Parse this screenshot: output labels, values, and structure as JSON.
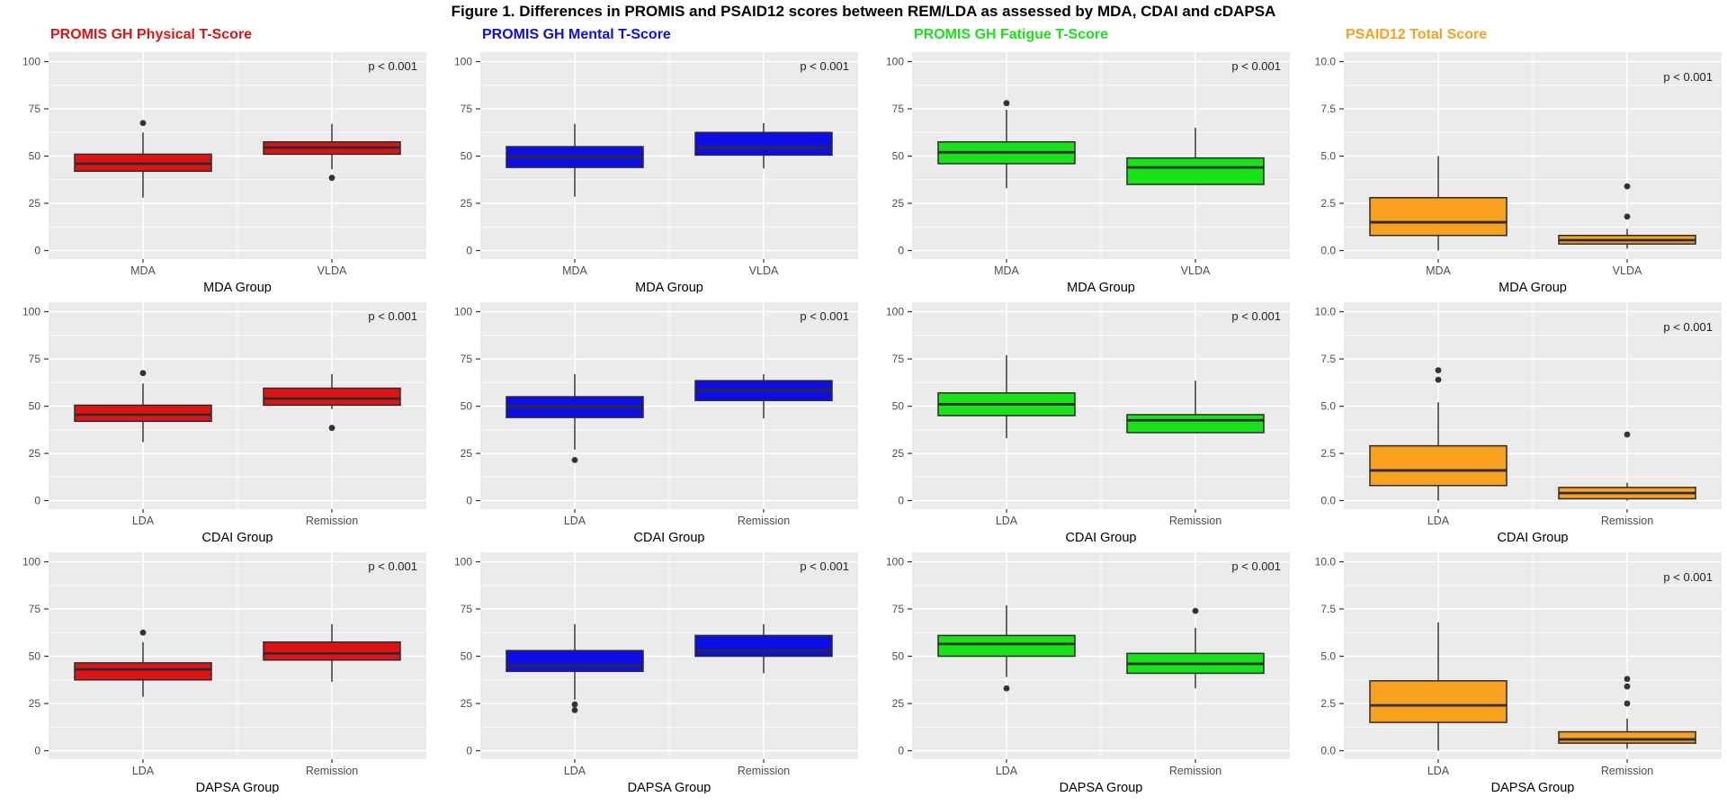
{
  "figure_title": "Figure 1. Differences in PROMIS and PSAID12 scores between REM/LDA as assessed by MDA, CDAI and cDAPSA",
  "annotation_label": "p < 0.001",
  "columns": [
    {
      "title": "PROMIS GH Physical T-Score",
      "color": "#DE1414",
      "tick_labels": [
        "100",
        "75",
        "50",
        "25",
        "0"
      ],
      "tick_values": [
        100,
        75,
        50,
        25,
        0
      ],
      "ylim": [
        -4.5,
        105
      ],
      "annotation_dy": 20
    },
    {
      "title": "PROMIS GH Mental T-Score",
      "color": "#0D0DE8",
      "tick_labels": [
        "100",
        "75",
        "50",
        "25",
        "0"
      ],
      "tick_values": [
        100,
        75,
        50,
        25,
        0
      ],
      "ylim": [
        -4.5,
        105
      ],
      "annotation_dy": 20
    },
    {
      "title": "PROMIS GH Fatigue T-Score",
      "color": "#17E317",
      "tick_labels": [
        "100",
        "75",
        "50",
        "25",
        "0"
      ],
      "tick_values": [
        100,
        75,
        50,
        25,
        0
      ],
      "ylim": [
        -4.5,
        105
      ],
      "annotation_dy": 20
    },
    {
      "title": "PSAID12 Total Score",
      "color": "#F7A11E",
      "tick_labels": [
        "10.0",
        "7.5",
        "5.0",
        "2.5",
        "0.0"
      ],
      "tick_values": [
        10,
        7.5,
        5,
        2.5,
        0
      ],
      "ylim": [
        -0.45,
        10.5
      ],
      "annotation_dy": 32
    }
  ],
  "rows": [
    {
      "group_label": "MDA Group",
      "categories": [
        "MDA",
        "VLDA"
      ]
    },
    {
      "group_label": "CDAI Group",
      "categories": [
        "LDA",
        "Remission"
      ]
    },
    {
      "group_label": "DAPSA Group",
      "categories": [
        "LDA",
        "Remission"
      ]
    }
  ],
  "style": {
    "panel_bg": "#EBEBEB",
    "grid_color": "#FFFFFF",
    "box_border": "#2B2B2B",
    "tick_text": "#4D4D4D",
    "axis_title_color": "#000000",
    "annotation_color": "#1F1F1F"
  },
  "chart_data": [
    {
      "type": "boxplot",
      "column": "PROMIS GH Physical T-Score",
      "xlabel": "MDA Group",
      "categories": [
        "MDA",
        "VLDA"
      ],
      "yticks": [
        0,
        25,
        50,
        75,
        100
      ],
      "ylim": [
        0,
        100
      ],
      "annotation": "p < 0.001",
      "series": [
        {
          "name": "MDA",
          "min": 28,
          "q1": 42,
          "median": 46,
          "q3": 51,
          "max": 62.5,
          "outliers": [
            67.5
          ]
        },
        {
          "name": "VLDA",
          "min": 43,
          "q1": 51,
          "median": 54.5,
          "q3": 57.5,
          "max": 67,
          "outliers": [
            38.5
          ]
        }
      ]
    },
    {
      "type": "boxplot",
      "column": "PROMIS GH Mental T-Score",
      "xlabel": "MDA Group",
      "categories": [
        "MDA",
        "VLDA"
      ],
      "yticks": [
        0,
        25,
        50,
        75,
        100
      ],
      "ylim": [
        0,
        100
      ],
      "annotation": "p < 0.001",
      "series": [
        {
          "name": "MDA",
          "min": 28.5,
          "q1": 44,
          "median": 49.5,
          "q3": 55,
          "max": 67,
          "outliers": []
        },
        {
          "name": "VLDA",
          "min": 43.5,
          "q1": 50.5,
          "median": 54.5,
          "q3": 62.5,
          "max": 67.5,
          "outliers": []
        }
      ]
    },
    {
      "type": "boxplot",
      "column": "PROMIS GH Fatigue T-Score",
      "xlabel": "MDA Group",
      "categories": [
        "MDA",
        "VLDA"
      ],
      "yticks": [
        0,
        25,
        50,
        75,
        100
      ],
      "ylim": [
        0,
        100
      ],
      "annotation": "p < 0.001",
      "series": [
        {
          "name": "MDA",
          "min": 33,
          "q1": 46,
          "median": 52,
          "q3": 57.5,
          "max": 74.5,
          "outliers": [
            78
          ]
        },
        {
          "name": "VLDA",
          "min": 35,
          "q1": 35,
          "median": 44,
          "q3": 49,
          "max": 65,
          "outliers": []
        }
      ]
    },
    {
      "type": "boxplot",
      "column": "PSAID12 Total Score",
      "xlabel": "MDA Group",
      "categories": [
        "MDA",
        "VLDA"
      ],
      "yticks": [
        0,
        2.5,
        5,
        7.5,
        10
      ],
      "ylim": [
        0,
        10
      ],
      "annotation": "p < 0.001",
      "series": [
        {
          "name": "MDA",
          "min": 0,
          "q1": 0.8,
          "median": 1.5,
          "q3": 2.8,
          "max": 5,
          "outliers": []
        },
        {
          "name": "VLDA",
          "min": 0.1,
          "q1": 0.35,
          "median": 0.55,
          "q3": 0.8,
          "max": 1.15,
          "outliers": [
            1.8,
            3.4
          ]
        }
      ]
    },
    {
      "type": "boxplot",
      "column": "PROMIS GH Physical T-Score",
      "xlabel": "CDAI Group",
      "categories": [
        "LDA",
        "Remission"
      ],
      "yticks": [
        0,
        25,
        50,
        75,
        100
      ],
      "ylim": [
        0,
        100
      ],
      "annotation": "p < 0.001",
      "series": [
        {
          "name": "LDA",
          "min": 31,
          "q1": 42,
          "median": 45.5,
          "q3": 50.5,
          "max": 62,
          "outliers": [
            67.5
          ]
        },
        {
          "name": "Remission",
          "min": 48.5,
          "q1": 50.5,
          "median": 54,
          "q3": 59.5,
          "max": 67,
          "outliers": [
            38.5
          ]
        }
      ]
    },
    {
      "type": "boxplot",
      "column": "PROMIS GH Mental T-Score",
      "xlabel": "CDAI Group",
      "categories": [
        "LDA",
        "Remission"
      ],
      "yticks": [
        0,
        25,
        50,
        75,
        100
      ],
      "ylim": [
        0,
        100
      ],
      "annotation": "p < 0.001",
      "series": [
        {
          "name": "LDA",
          "min": 27,
          "q1": 44,
          "median": 49.5,
          "q3": 55,
          "max": 67,
          "outliers": [
            21.5
          ]
        },
        {
          "name": "Remission",
          "min": 43.5,
          "q1": 53,
          "median": 58.5,
          "q3": 63.5,
          "max": 67,
          "outliers": []
        }
      ]
    },
    {
      "type": "boxplot",
      "column": "PROMIS GH Fatigue T-Score",
      "xlabel": "CDAI Group",
      "categories": [
        "LDA",
        "Remission"
      ],
      "yticks": [
        0,
        25,
        50,
        75,
        100
      ],
      "ylim": [
        0,
        100
      ],
      "annotation": "p < 0.001",
      "series": [
        {
          "name": "LDA",
          "min": 33,
          "q1": 45,
          "median": 51,
          "q3": 57,
          "max": 77,
          "outliers": []
        },
        {
          "name": "Remission",
          "min": 36,
          "q1": 36,
          "median": 42.5,
          "q3": 45.5,
          "max": 63.5,
          "outliers": []
        }
      ]
    },
    {
      "type": "boxplot",
      "column": "PSAID12 Total Score",
      "xlabel": "CDAI Group",
      "categories": [
        "LDA",
        "Remission"
      ],
      "yticks": [
        0,
        2.5,
        5,
        7.5,
        10
      ],
      "ylim": [
        0,
        10
      ],
      "annotation": "p < 0.001",
      "series": [
        {
          "name": "LDA",
          "min": 0,
          "q1": 0.8,
          "median": 1.6,
          "q3": 2.9,
          "max": 5.2,
          "outliers": [
            6.4,
            6.9
          ]
        },
        {
          "name": "Remission",
          "min": 0,
          "q1": 0.1,
          "median": 0.4,
          "q3": 0.7,
          "max": 0.95,
          "outliers": [
            3.5
          ]
        }
      ]
    },
    {
      "type": "boxplot",
      "column": "PROMIS GH Physical T-Score",
      "xlabel": "DAPSA Group",
      "categories": [
        "LDA",
        "Remission"
      ],
      "yticks": [
        0,
        25,
        50,
        75,
        100
      ],
      "ylim": [
        0,
        100
      ],
      "annotation": "p < 0.001",
      "series": [
        {
          "name": "LDA",
          "min": 28.5,
          "q1": 37.5,
          "median": 43,
          "q3": 46.5,
          "max": 57.5,
          "outliers": [
            62.5
          ]
        },
        {
          "name": "Remission",
          "min": 36.5,
          "q1": 48,
          "median": 51.5,
          "q3": 57.5,
          "max": 67,
          "outliers": []
        }
      ]
    },
    {
      "type": "boxplot",
      "column": "PROMIS GH Mental T-Score",
      "xlabel": "DAPSA Group",
      "categories": [
        "LDA",
        "Remission"
      ],
      "yticks": [
        0,
        25,
        50,
        75,
        100
      ],
      "ylim": [
        0,
        100
      ],
      "annotation": "p < 0.001",
      "series": [
        {
          "name": "LDA",
          "min": 27,
          "q1": 42,
          "median": 45,
          "q3": 53,
          "max": 67,
          "outliers": [
            24.5,
            21.5
          ]
        },
        {
          "name": "Remission",
          "min": 41,
          "q1": 50,
          "median": 53,
          "q3": 61,
          "max": 67,
          "outliers": []
        }
      ]
    },
    {
      "type": "boxplot",
      "column": "PROMIS GH Fatigue T-Score",
      "xlabel": "DAPSA Group",
      "categories": [
        "LDA",
        "Remission"
      ],
      "yticks": [
        0,
        25,
        50,
        75,
        100
      ],
      "ylim": [
        0,
        100
      ],
      "annotation": "p < 0.001",
      "series": [
        {
          "name": "LDA",
          "min": 39,
          "q1": 50,
          "median": 56.5,
          "q3": 61,
          "max": 77,
          "outliers": [
            33
          ]
        },
        {
          "name": "Remission",
          "min": 33,
          "q1": 41,
          "median": 46,
          "q3": 51.5,
          "max": 65,
          "outliers": [
            74
          ]
        }
      ]
    },
    {
      "type": "boxplot",
      "column": "PSAID12 Total Score",
      "xlabel": "DAPSA Group",
      "categories": [
        "LDA",
        "Remission"
      ],
      "yticks": [
        0,
        2.5,
        5,
        7.5,
        10
      ],
      "ylim": [
        0,
        10
      ],
      "annotation": "p < 0.001",
      "series": [
        {
          "name": "LDA",
          "min": 0,
          "q1": 1.5,
          "median": 2.4,
          "q3": 3.7,
          "max": 6.8,
          "outliers": []
        },
        {
          "name": "Remission",
          "min": 0.1,
          "q1": 0.4,
          "median": 0.6,
          "q3": 1,
          "max": 1.7,
          "outliers": [
            2.5,
            3.4,
            3.8
          ]
        }
      ]
    }
  ]
}
